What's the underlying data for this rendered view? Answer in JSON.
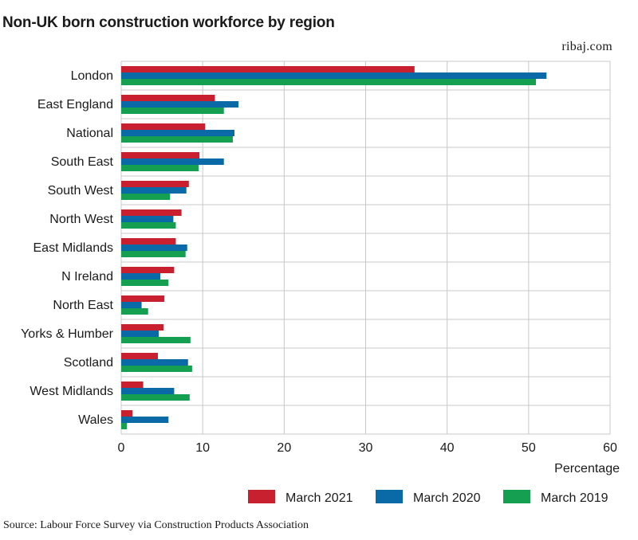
{
  "header": {
    "title": "Non-UK born construction workforce by region",
    "brand": "ribaj.com"
  },
  "footer": {
    "source": "Source: Labour Force Survey via Construction Products Association"
  },
  "chart_data": {
    "type": "bar",
    "orientation": "horizontal",
    "title": "Non-UK born construction workforce by region",
    "xlabel": "Percentage",
    "ylabel": "",
    "xlim": [
      0,
      60
    ],
    "xticks": [
      0,
      10,
      20,
      30,
      40,
      50,
      60
    ],
    "grid": true,
    "legend_position": "bottom-right",
    "categories": [
      "London",
      "East England",
      "National",
      "South East",
      "South West",
      "North West",
      "East Midlands",
      "N Ireland",
      "North East",
      "Yorks & Humber",
      "Scotland",
      "West Midlands",
      "Wales"
    ],
    "series": [
      {
        "name": "March 2021",
        "color": "#c8202f",
        "values": [
          36.0,
          11.5,
          10.3,
          9.6,
          8.3,
          7.4,
          6.7,
          6.5,
          5.3,
          5.2,
          4.5,
          2.7,
          1.4
        ]
      },
      {
        "name": "March 2020",
        "color": "#0a6aa8",
        "values": [
          52.2,
          14.4,
          13.9,
          12.6,
          8.0,
          6.4,
          8.1,
          4.8,
          2.5,
          4.6,
          8.2,
          6.5,
          5.8
        ]
      },
      {
        "name": "March 2019",
        "color": "#14a050",
        "values": [
          50.9,
          12.6,
          13.7,
          9.5,
          6.0,
          6.7,
          7.9,
          5.8,
          3.3,
          8.5,
          8.7,
          8.4,
          0.7
        ]
      }
    ]
  }
}
